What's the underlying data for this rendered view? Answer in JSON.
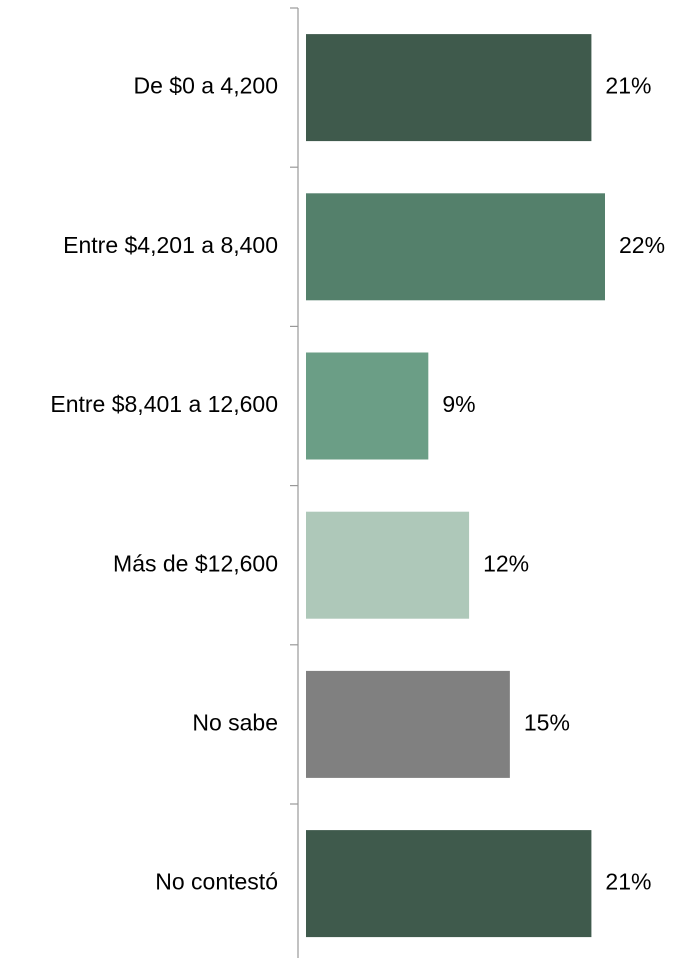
{
  "chart_data": {
    "type": "barh",
    "categories": [
      "De $0 a 4,200",
      "Entre $4,201 a 8,400",
      "Entre $8,401 a 12,600",
      "Más de $12,600",
      "No sabe",
      "No contestó"
    ],
    "values": [
      21,
      22,
      9,
      12,
      15,
      21
    ],
    "value_labels": [
      "21%",
      "22%",
      "9%",
      "12%",
      "15%",
      "21%"
    ],
    "colors": [
      "#3f5a4c",
      "#54806b",
      "#6b9e86",
      "#aec8b9",
      "#808080",
      "#3f5a4c"
    ]
  }
}
